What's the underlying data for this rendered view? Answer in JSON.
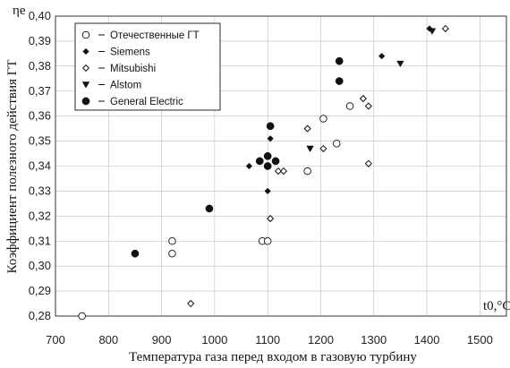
{
  "chart_data": {
    "type": "scatter",
    "title": "",
    "xlabel": "Температура газа перед входом в газовую турбину",
    "ylabel": "Коэффициент полезного действия ГТ",
    "x_unit_label": "t0,°C",
    "y_symbol_label": "ηe",
    "xlim": [
      700,
      1550
    ],
    "ylim": [
      0.28,
      0.4
    ],
    "x_ticks": [
      700,
      800,
      900,
      1000,
      1100,
      1200,
      1300,
      1400,
      1500
    ],
    "y_ticks": [
      "0,28",
      "0,29",
      "0,30",
      "0,31",
      "0,32",
      "0,33",
      "0,34",
      "0,35",
      "0,36",
      "0,37",
      "0,38",
      "0,39",
      "0,40"
    ],
    "grid": true,
    "legend_position": "top-left",
    "series": [
      {
        "name": "Отечественные ГТ",
        "marker": "open-circle",
        "points": [
          [
            750,
            0.28
          ],
          [
            920,
            0.31
          ],
          [
            920,
            0.305
          ],
          [
            1090,
            0.31
          ],
          [
            1100,
            0.31
          ],
          [
            1175,
            0.338
          ],
          [
            1205,
            0.359
          ],
          [
            1230,
            0.349
          ],
          [
            1255,
            0.364
          ]
        ]
      },
      {
        "name": "Siemens",
        "marker": "filled-diamond",
        "points": [
          [
            1065,
            0.34
          ],
          [
            1100,
            0.33
          ],
          [
            1105,
            0.351
          ],
          [
            1315,
            0.384
          ],
          [
            1405,
            0.395
          ]
        ]
      },
      {
        "name": "Mitsubishi",
        "marker": "open-diamond",
        "points": [
          [
            955,
            0.285
          ],
          [
            1105,
            0.319
          ],
          [
            1120,
            0.338
          ],
          [
            1130,
            0.338
          ],
          [
            1175,
            0.355
          ],
          [
            1205,
            0.347
          ],
          [
            1280,
            0.367
          ],
          [
            1290,
            0.364
          ],
          [
            1290,
            0.341
          ],
          [
            1435,
            0.395
          ]
        ]
      },
      {
        "name": "Alstom",
        "marker": "filled-triangle-down",
        "points": [
          [
            1180,
            0.347
          ],
          [
            1350,
            0.381
          ],
          [
            1410,
            0.394
          ]
        ]
      },
      {
        "name": "General Electric",
        "marker": "filled-circle",
        "points": [
          [
            850,
            0.305
          ],
          [
            990,
            0.323
          ],
          [
            1085,
            0.342
          ],
          [
            1100,
            0.344
          ],
          [
            1105,
            0.356
          ],
          [
            1100,
            0.34
          ],
          [
            1115,
            0.342
          ],
          [
            1235,
            0.382
          ],
          [
            1235,
            0.374
          ]
        ]
      }
    ],
    "colors": {
      "ink": "#111111",
      "grid": "#bdbdbd",
      "frame": "#333333"
    }
  }
}
